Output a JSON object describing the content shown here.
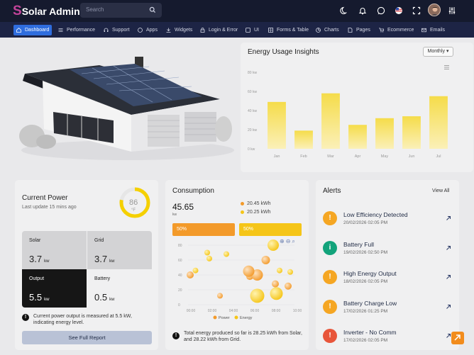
{
  "app": {
    "logo_letter": "S",
    "logo_text": "Solar Admin"
  },
  "search": {
    "placeholder": "Search"
  },
  "topbar_icons": [
    "moon-icon",
    "bell-icon",
    "chat-icon",
    "flag-icon",
    "fullscreen-icon",
    "avatar",
    "settings-sliders-icon"
  ],
  "nav": {
    "items": [
      {
        "label": "Dashboard",
        "icon": "home-icon",
        "active": true
      },
      {
        "label": "Performance",
        "icon": "list-icon"
      },
      {
        "label": "Support",
        "icon": "headset-icon"
      },
      {
        "label": "Apps",
        "icon": "apps-icon"
      },
      {
        "label": "Widgets",
        "icon": "widgets-icon"
      },
      {
        "label": "Login & Error",
        "icon": "lock-icon"
      },
      {
        "label": "UI",
        "icon": "ui-icon"
      },
      {
        "label": "Forms & Table",
        "icon": "table-icon"
      },
      {
        "label": "Charts",
        "icon": "chart-icon"
      },
      {
        "label": "Pages",
        "icon": "page-icon"
      },
      {
        "label": "Ecommerce",
        "icon": "cart-icon"
      },
      {
        "label": "Emails",
        "icon": "mail-icon"
      }
    ]
  },
  "energy": {
    "title": "Energy Usage Insights",
    "period": "Monthly",
    "chart_data": {
      "type": "bar",
      "categories": [
        "Jan",
        "Feb",
        "Mar",
        "Apr",
        "May",
        "Jun",
        "Jul"
      ],
      "values": [
        49,
        19,
        58,
        25,
        32,
        34,
        55
      ],
      "yticks": [
        "0 kw",
        "20 kw",
        "40 kw",
        "60 kw",
        "80 kw"
      ],
      "ylim": [
        0,
        80
      ],
      "ylabel": "",
      "xlabel": "",
      "color": "#f5dc4a"
    }
  },
  "power": {
    "title": "Current Power",
    "subtitle": "Last update 15 mins ago",
    "gauge": {
      "value": "86",
      "unit": "°F",
      "fraction": 0.78
    },
    "cells": [
      {
        "label": "Solar",
        "value": "3.7",
        "unit": "kw"
      },
      {
        "label": "Grid",
        "value": "3.7",
        "unit": "kw"
      },
      {
        "label": "Output",
        "value": "5.5",
        "unit": "kw"
      },
      {
        "label": "Battery",
        "value": "0.5",
        "unit": "kw"
      }
    ],
    "note": "Current power output is measured at 5.5 kW, indicating energy level.",
    "button": "See Full Report"
  },
  "consumption": {
    "title": "Consumption",
    "value": "45.65",
    "unit": "kw",
    "legend_values": [
      "20.45 kWh",
      "20.25 kWh"
    ],
    "bar1": "50%",
    "bar2": "50%",
    "colors": {
      "power": "#f39a2a",
      "energy": "#f5c518"
    },
    "chart_data": {
      "type": "scatter",
      "x": [
        "00:00",
        "02:00",
        "04:00",
        "06:00",
        "08:00",
        "10:00"
      ],
      "yticks": [
        "0",
        "20",
        "40",
        "60",
        "80"
      ],
      "ylim": [
        0,
        80
      ],
      "series": [
        {
          "name": "Power",
          "points": [
            [
              0.2,
              40,
              5
            ],
            [
              5.8,
              38,
              5
            ],
            [
              6.5,
              40,
              8
            ],
            [
              7.3,
              60,
              6
            ],
            [
              8.2,
              28,
              5
            ],
            [
              9.4,
              25,
              5
            ],
            [
              3.0,
              12,
              4
            ],
            [
              5.7,
              45,
              8
            ]
          ]
        },
        {
          "name": "Energy",
          "points": [
            [
              1.8,
              70,
              4
            ],
            [
              2.0,
              62,
              4
            ],
            [
              3.6,
              68,
              4
            ],
            [
              6.5,
              12,
              10
            ],
            [
              8.3,
              15,
              9
            ],
            [
              8.0,
              80,
              8
            ],
            [
              0.7,
              46,
              4
            ],
            [
              9.6,
              44,
              4
            ],
            [
              8.6,
              46,
              4
            ]
          ]
        }
      ]
    },
    "note": "Total energy produced so far is 28.25 kWh from Solar, and 28.22 kWh from Grid."
  },
  "alerts": {
    "title": "Alerts",
    "view_all": "View All",
    "items": [
      {
        "title": "Low Efficiency Detected",
        "date": "20/02/2026 02:05 PM",
        "icon": "warning-icon",
        "color": "#f5a623",
        "glyph": "!"
      },
      {
        "title": "Battery Full",
        "date": "19/02/2026 02:50 PM",
        "icon": "info-icon",
        "color": "#12a37b",
        "glyph": "i"
      },
      {
        "title": "High Energy Output",
        "date": "18/02/2026 02:05 PM",
        "icon": "warning-icon",
        "color": "#f5a623",
        "glyph": "!"
      },
      {
        "title": "Battery Charge Low",
        "date": "17/02/2026 01:25 PM",
        "icon": "warning-icon",
        "color": "#f5a623",
        "glyph": "!"
      },
      {
        "title": "Inverter - No Comm",
        "date": "17/02/2026 02:05 PM",
        "icon": "warning-icon",
        "color": "#e8553a",
        "glyph": "!"
      }
    ]
  }
}
